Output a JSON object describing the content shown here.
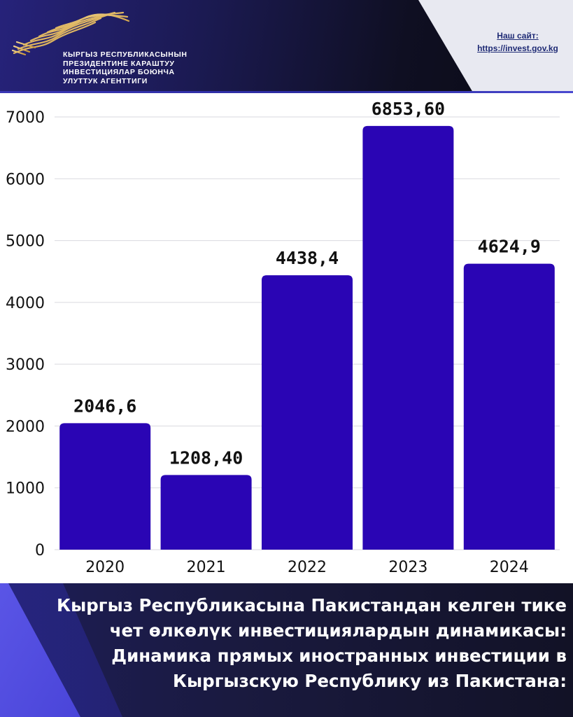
{
  "header": {
    "agency_lines": [
      "КЫРГЫЗ РЕСПУБЛИКАСЫНЫН",
      "ПРЕЗИДЕНТИНЕ КАРАШТУУ",
      "ИНВЕСТИЦИЯЛАР БОЮНЧА",
      "УЛУТТУК АГЕНТТИГИ"
    ],
    "site_label": "Наш сайт:",
    "site_url": "https://invest.gov.kg",
    "logo_icon": "golden-wave-logo-icon"
  },
  "colors": {
    "bar": "#2a05b4",
    "header_dark": "#0f0f22",
    "footer_dark": "#1a1a40",
    "accent": "#4a45dc"
  },
  "chart_data": {
    "type": "bar",
    "categories": [
      "2020",
      "2021",
      "2022",
      "2023",
      "2024"
    ],
    "values": [
      2046.6,
      1208.4,
      4438.4,
      6853.6,
      4624.9
    ],
    "value_labels": [
      "2046,6",
      "1208,40",
      "4438,4",
      "6853,60",
      "4624,9"
    ],
    "yticks": [
      0,
      1000,
      2000,
      3000,
      4000,
      5000,
      6000,
      7000
    ],
    "ylim": [
      0,
      7000
    ],
    "grid": true,
    "title": "",
    "xlabel": "",
    "ylabel": ""
  },
  "footer": {
    "caption_lines": [
      "Кыргыз Республикасына Пакистандан келген тике",
      "чет өлкөлүк инвестициялардын динамикасы:",
      "Динамика прямых иностранных инвестиции в",
      "Кыргызскую Республику из Пакистана:"
    ]
  }
}
